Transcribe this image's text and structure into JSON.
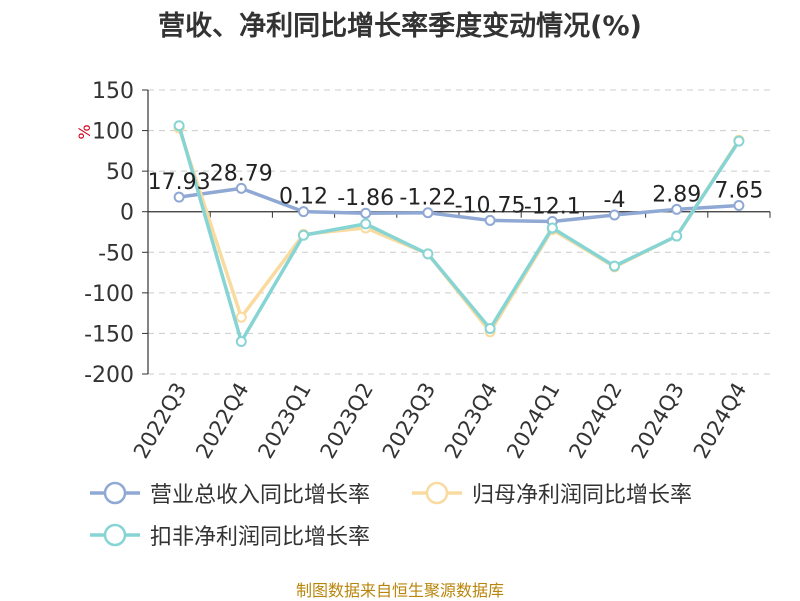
{
  "title": "营收、净利同比增长率季度变动情况(%)",
  "source": "制图数据来自恒生聚源数据库",
  "chart_data": {
    "type": "line",
    "title": "营收、净利同比增长率季度变动情况(%)",
    "ylabel": "%",
    "ylim": [
      -200,
      150
    ],
    "yticks": [
      150,
      100,
      50,
      0,
      -50,
      -100,
      -150,
      -200
    ],
    "grid": true,
    "legend_position": "bottom",
    "categories": [
      "2022Q3",
      "2022Q4",
      "2023Q1",
      "2023Q2",
      "2023Q3",
      "2023Q4",
      "2024Q1",
      "2024Q2",
      "2024Q3",
      "2024Q4"
    ],
    "series": [
      {
        "name": "营业总收入同比增长率",
        "color": "#8fa9d4",
        "values": [
          17.93,
          28.79,
          0.12,
          -1.86,
          -1.22,
          -10.75,
          -12.1,
          -4,
          2.89,
          7.65
        ],
        "labels": [
          "17.93",
          "28.79",
          "0.12",
          "-1.86",
          "-1.22",
          "-10.75",
          "-12.1",
          "-4",
          "2.89",
          "7.65"
        ]
      },
      {
        "name": "归母净利润同比增长率",
        "color": "#f9dba0",
        "values": [
          103,
          -130,
          -28,
          -20,
          -52,
          -148,
          -22,
          -68,
          -30,
          88
        ]
      },
      {
        "name": "扣非净利润同比增长率",
        "color": "#87d4d4",
        "values": [
          106,
          -160,
          -29,
          -15,
          -52,
          -144,
          -20,
          -67,
          -30,
          87
        ]
      }
    ]
  }
}
